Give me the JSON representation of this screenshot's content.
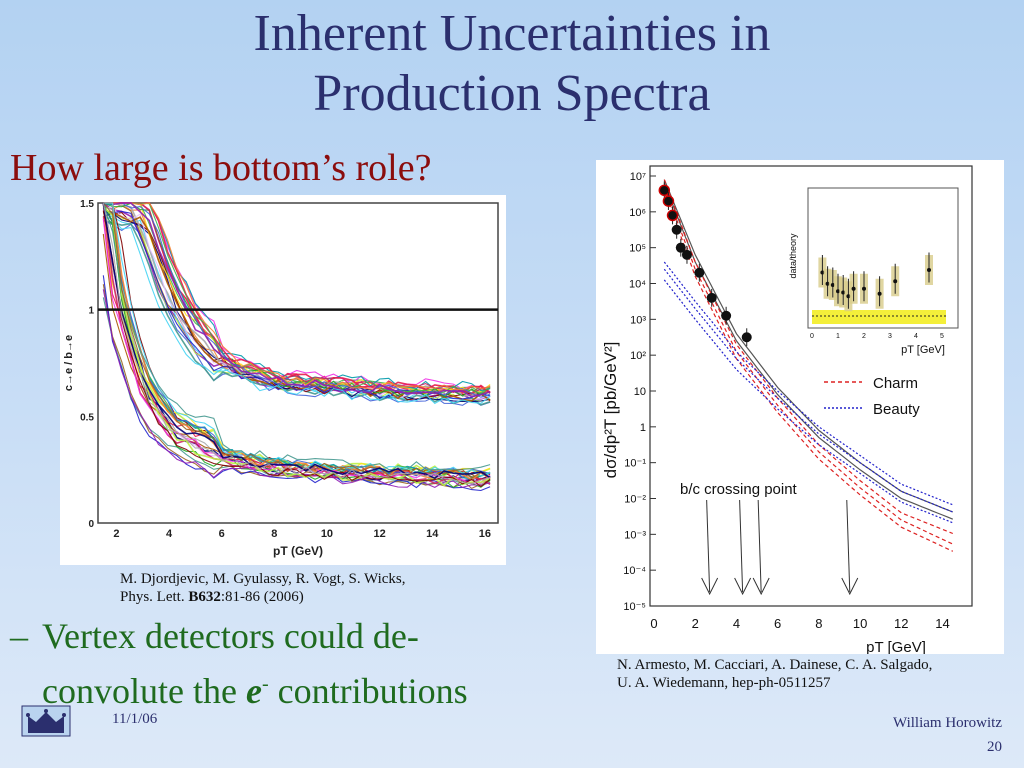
{
  "title": {
    "line1": "Inherent Uncertainties in",
    "line2": "Production Spectra"
  },
  "question": "How large is bottom’s role?",
  "bullet": {
    "dash": "–",
    "line1": "Vertex detectors could de-",
    "line2_pre": "convolute the ",
    "line2_em": "e",
    "line2_sup": "-",
    "line2_post": " contributions"
  },
  "ref_left": {
    "line1": "M. Djordjevic, M. Gyulassy, R. Vogt, S. Wicks,",
    "line2_pre": "Phys. Lett. ",
    "line2_bold": "B632",
    "line2_post": ":81-86 (2006)"
  },
  "ref_right": {
    "line1": "N. Armesto, M. Cacciari, A. Dainese, C. A. Salgado,",
    "line2": "U. A. Wiedemann, hep-ph-0511257"
  },
  "footer": {
    "date": "11/1/06",
    "author": "William Horowitz",
    "page": "20"
  },
  "colors": {
    "title": "#2b2f6e",
    "question": "#8b0d0d",
    "bullet": "#1f6b1f"
  },
  "chart_data": [
    {
      "type": "line",
      "xlabel": "pT (GeV)",
      "ylabel": "c→e / b→e",
      "xlim": [
        1.3,
        16.5
      ],
      "ylim": [
        0,
        1.5
      ],
      "xticks": [
        "2",
        "4",
        "6",
        "8",
        "10",
        "12",
        "14",
        "16"
      ],
      "yticks": [
        "0",
        "0.5",
        "1",
        "1.5"
      ],
      "reference_line": 1,
      "bands": [
        {
          "x": [
            1.5,
            3,
            4,
            5,
            6,
            8,
            12,
            16
          ],
          "y": [
            1.5,
            1.45,
            1.1,
            0.88,
            0.75,
            0.66,
            0.62,
            0.6
          ]
        },
        {
          "x": [
            1.5,
            2,
            3,
            4,
            6,
            8,
            12,
            16
          ],
          "y": [
            1.5,
            1.0,
            0.6,
            0.42,
            0.3,
            0.25,
            0.22,
            0.2
          ]
        }
      ]
    },
    {
      "type": "line",
      "log_y": true,
      "xlabel": "pT [GeV]",
      "ylabel": "dσ/dp²T [pb/GeV²]",
      "xlim": [
        0,
        15
      ],
      "ylim_exp": [
        -5,
        7
      ],
      "xticks": [
        "0",
        "2",
        "4",
        "6",
        "8",
        "10",
        "12",
        "14"
      ],
      "yticks": [
        "10⁻⁵",
        "10⁻⁴",
        "10⁻³",
        "10⁻²",
        "10⁻¹",
        "1",
        "10",
        "10²",
        "10³",
        "10⁴",
        "10⁵",
        "10⁶",
        "10⁷"
      ],
      "legend": [
        "Charm",
        "Beauty"
      ],
      "annotation": "b/c crossing point",
      "crossing_points": [
        2.7,
        4.3,
        5.2,
        9.5
      ],
      "data_points": {
        "x": [
          0.5,
          0.7,
          0.9,
          1.1,
          1.3,
          1.6,
          2.2,
          2.8,
          3.5,
          4.5
        ],
        "y_exp": [
          6.6,
          6.3,
          5.9,
          5.5,
          5.0,
          4.8,
          4.3,
          3.6,
          3.1,
          2.5
        ]
      },
      "inset": {
        "xlabel": "pT [GeV]",
        "ylabel": "data/theory",
        "xticks": [
          "0",
          "1",
          "2",
          "3",
          "4",
          "5"
        ]
      }
    }
  ]
}
